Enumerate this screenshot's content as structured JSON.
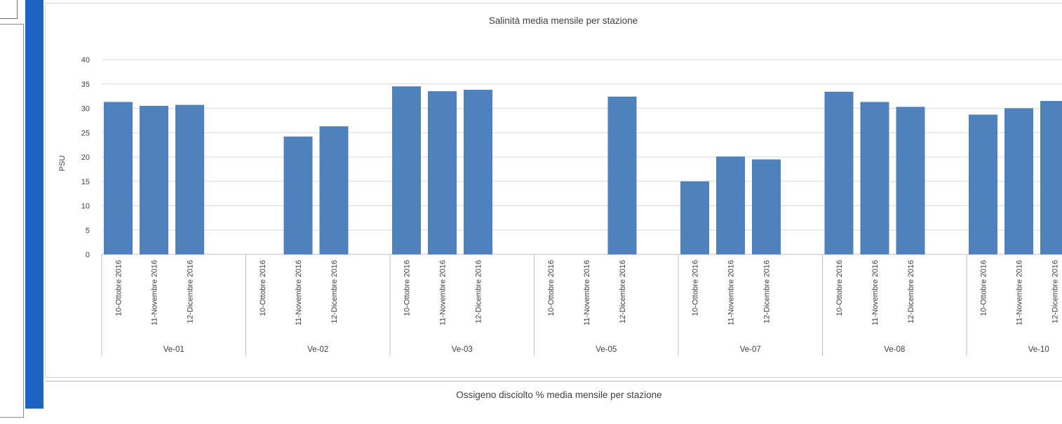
{
  "colors": {
    "bar": "#4f81bd",
    "grid": "#d9d9d9",
    "axis": "#bfbfbf",
    "text": "#404040",
    "side_bar": "#1c63c4"
  },
  "chart_data": [
    {
      "type": "bar",
      "title": "Salinità media mensile per stazione",
      "ylabel": "PSU",
      "xlabel": "",
      "ylim": [
        0,
        40
      ],
      "yticks": [
        0,
        5,
        10,
        15,
        20,
        25,
        30,
        35,
        40
      ],
      "grid": true,
      "legend": "none",
      "months": [
        "10-Ottobre 2016",
        "11-Novembre 2016",
        "12-Dicembre 2016"
      ],
      "groups": [
        {
          "station": "Ve-01",
          "values": [
            31.3,
            30.5,
            30.7
          ]
        },
        {
          "station": "Ve-02",
          "values": [
            null,
            24.2,
            26.3
          ]
        },
        {
          "station": "Ve-03",
          "values": [
            34.5,
            33.5,
            33.8
          ]
        },
        {
          "station": "Ve-05",
          "values": [
            null,
            null,
            32.4
          ]
        },
        {
          "station": "Ve-07",
          "values": [
            15.0,
            20.1,
            19.5
          ]
        },
        {
          "station": "Ve-08",
          "values": [
            33.4,
            31.3,
            30.3
          ]
        },
        {
          "station": "Ve-10",
          "values": [
            28.7,
            30.0,
            31.5
          ]
        }
      ]
    },
    {
      "type": "bar",
      "title": "Ossigeno disciolto % media mensile per stazione"
    }
  ]
}
